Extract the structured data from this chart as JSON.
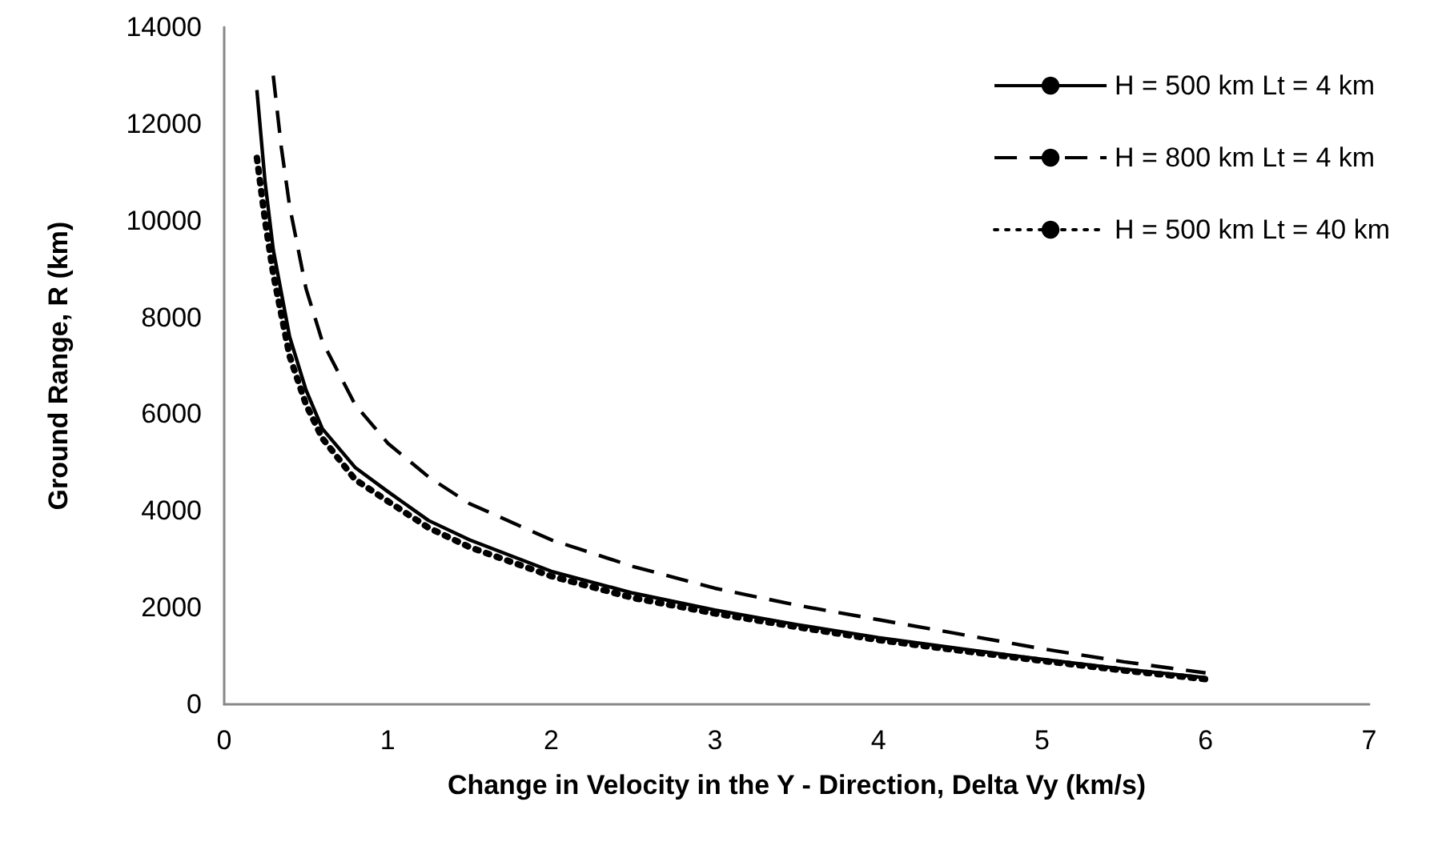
{
  "chart_data": {
    "type": "line",
    "xlabel": "Change in Velocity in the Y - Direction, Delta Vy (km/s)",
    "ylabel": "Ground Range, R (km)",
    "xlim": [
      0,
      7
    ],
    "xticks": [
      0,
      1,
      2,
      3,
      4,
      5,
      6,
      7
    ],
    "ylim": [
      0,
      14000
    ],
    "yticks": [
      0,
      2000,
      4000,
      6000,
      8000,
      10000,
      12000,
      14000
    ],
    "grid": false,
    "legend": "top right",
    "marker": "none",
    "series": [
      {
        "name": "H = 500 km Lt = 4 km",
        "color": "#000000",
        "line_style": "solid",
        "x": [
          0.2,
          0.25,
          0.3,
          0.4,
          0.5,
          0.6,
          0.8,
          1,
          1.25,
          1.5,
          2,
          2.5,
          3,
          3.5,
          4,
          4.5,
          5,
          5.5,
          6
        ],
        "values": [
          12700,
          10800,
          9400,
          7600,
          6500,
          5700,
          4900,
          4400,
          3800,
          3400,
          2750,
          2300,
          1950,
          1650,
          1380,
          1150,
          930,
          730,
          550
        ]
      },
      {
        "name": "H = 800 km Lt = 4 km",
        "color": "#000000",
        "line_style": "dashed",
        "x": [
          0.3,
          0.35,
          0.4,
          0.5,
          0.6,
          0.8,
          1,
          1.25,
          1.5,
          2,
          2.5,
          3,
          3.5,
          4,
          4.5,
          5,
          5.5,
          6
        ],
        "values": [
          13000,
          11500,
          10300,
          8600,
          7500,
          6200,
          5400,
          4700,
          4150,
          3400,
          2850,
          2400,
          2050,
          1750,
          1450,
          1150,
          880,
          650
        ]
      },
      {
        "name": "H = 500 km Lt = 40 km",
        "color": "#000000",
        "line_style": "dotted",
        "x": [
          0.2,
          0.25,
          0.3,
          0.4,
          0.5,
          0.6,
          0.8,
          1,
          1.25,
          1.5,
          2,
          2.5,
          3,
          3.5,
          4,
          4.5,
          5,
          5.5,
          6
        ],
        "values": [
          11300,
          10000,
          8900,
          7200,
          6200,
          5500,
          4650,
          4200,
          3650,
          3250,
          2650,
          2200,
          1880,
          1600,
          1330,
          1110,
          900,
          700,
          520
        ]
      }
    ]
  }
}
